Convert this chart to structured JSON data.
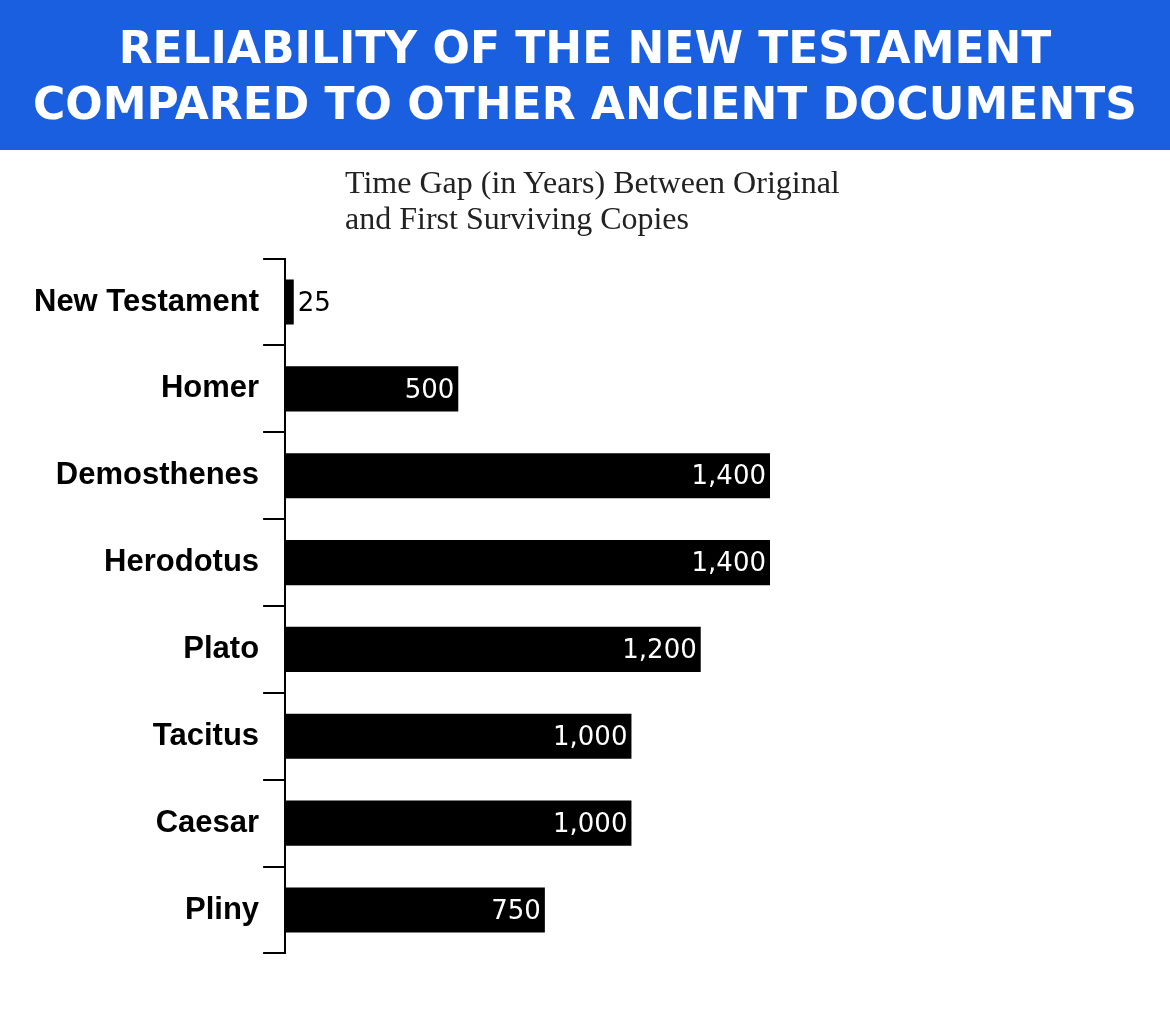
{
  "chart_data": {
    "type": "bar",
    "orientation": "horizontal",
    "title": "RELIABILITY OF THE NEW TESTAMENT COMPARED TO OTHER ANCIENT DOCUMENTS",
    "subtitle": "Time Gap (in Years) Between Original and First Surviving Copies",
    "categories": [
      "New Testament",
      "Homer",
      "Demosthenes",
      "Herodotus",
      "Plato",
      "Tacitus",
      "Caesar",
      "Pliny"
    ],
    "values": [
      25,
      500,
      1400,
      1400,
      1200,
      1000,
      1000,
      750
    ],
    "value_labels": [
      "25",
      "500",
      "1,400",
      "1,400",
      "1,200",
      "1,000",
      "1,000",
      "750"
    ],
    "color": "#000000",
    "tick_labels": "y",
    "legend": false
  }
}
